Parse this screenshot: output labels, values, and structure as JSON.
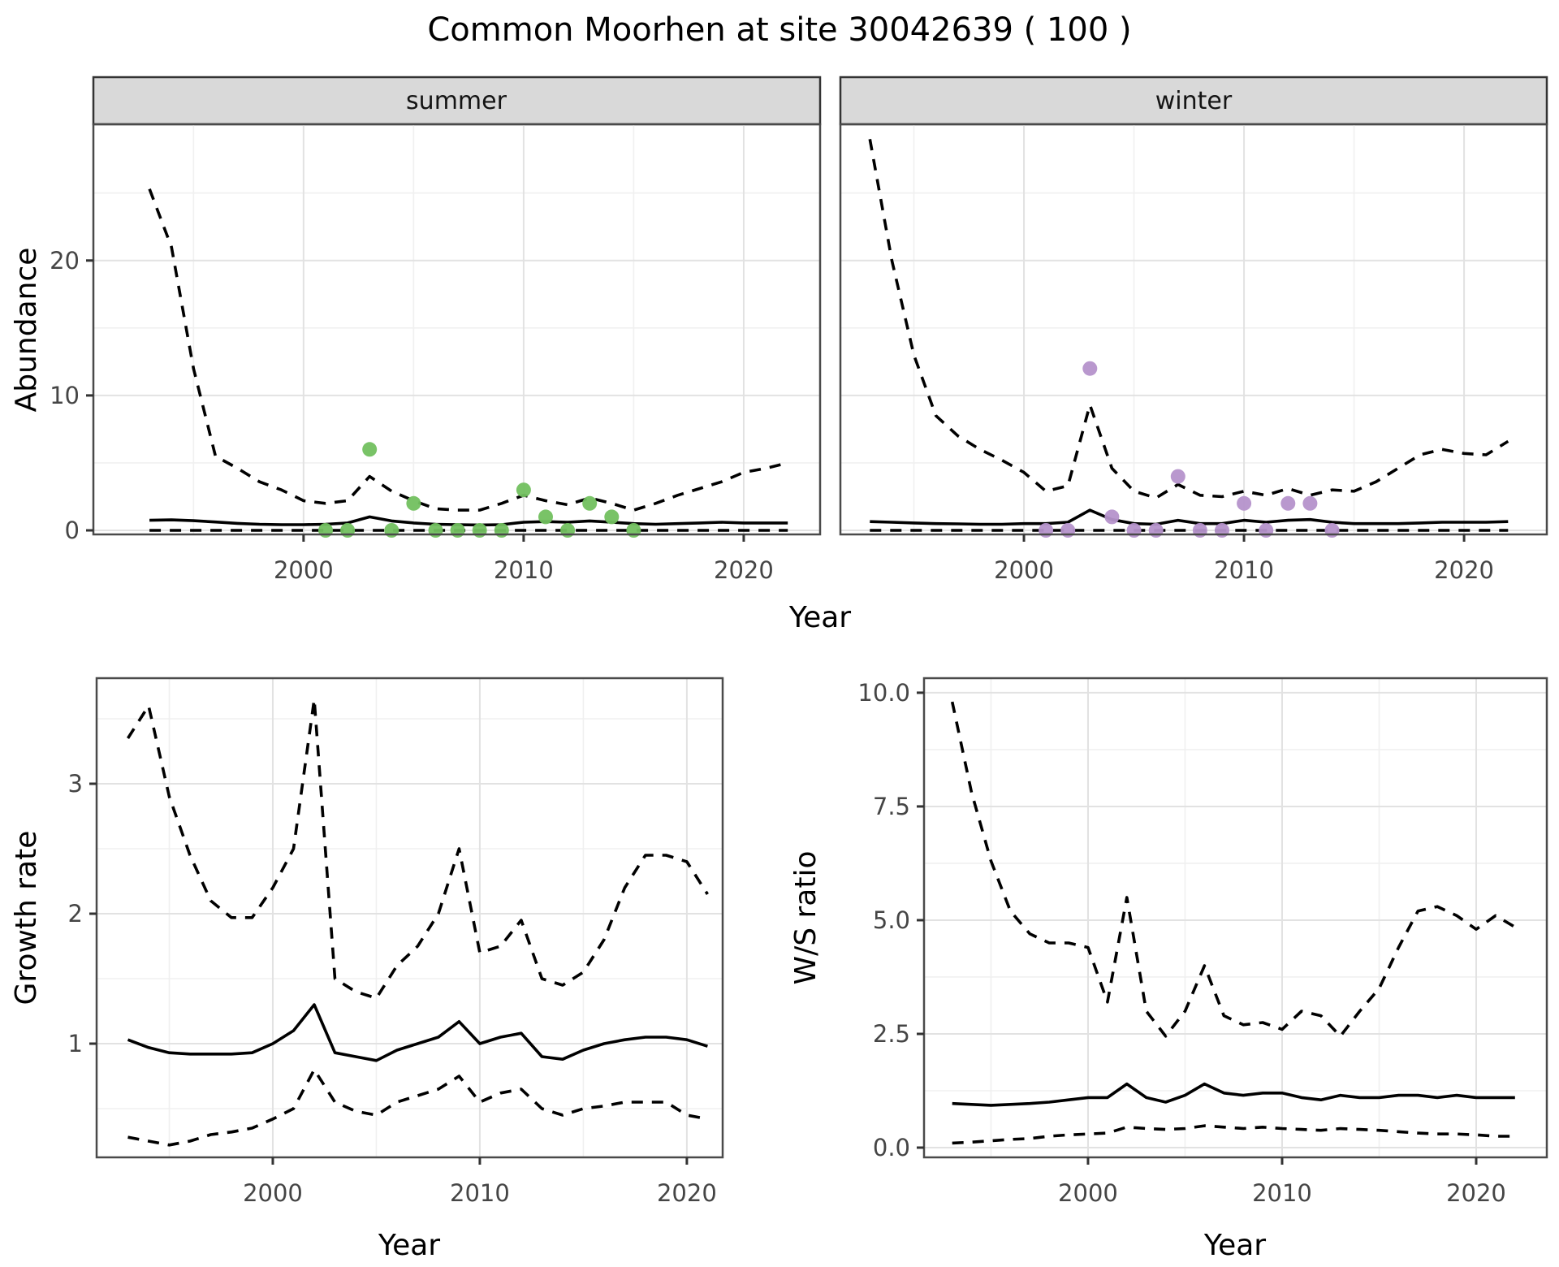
{
  "title": "Common Moorhen at site 30042639 ( 100 )",
  "colors": {
    "summer_point": "#72c05f",
    "winter_point": "#b592cb",
    "line": "#000000",
    "strip_background": "#d9d9d9",
    "grid_major": "#e2e2e2",
    "grid_minor": "#f0f0f0"
  },
  "chart_data": [
    {
      "id": "abundance-summer",
      "type": "line",
      "facet_label": "summer",
      "xlabel": "Year",
      "ylabel": "Abundance",
      "xlim": [
        1990.45,
        2023.47
      ],
      "ylim": [
        -0.3,
        30.1
      ],
      "start_year": 1993,
      "x_major_ticks": [
        2000,
        2010,
        2020
      ],
      "x_tick_labels": [
        "2000",
        "2010",
        "2020"
      ],
      "x_minor_ticks": [
        1995,
        2005,
        2015
      ],
      "y_major_ticks": [
        0,
        10,
        20
      ],
      "y_tick_labels": [
        "0",
        "10",
        "20"
      ],
      "y_minor_ticks": [
        5,
        15,
        25
      ],
      "grid": true,
      "legend": "none",
      "points": [
        [
          2001,
          0
        ],
        [
          2002,
          0
        ],
        [
          2003,
          6
        ],
        [
          2004,
          0
        ],
        [
          2005,
          2
        ],
        [
          2006,
          0
        ],
        [
          2007,
          0
        ],
        [
          2008,
          0
        ],
        [
          2009,
          0
        ],
        [
          2010,
          3
        ],
        [
          2011,
          1
        ],
        [
          2012,
          0
        ],
        [
          2013,
          2
        ],
        [
          2014,
          1
        ],
        [
          2015,
          0
        ]
      ],
      "series": [
        {
          "name": "lower-credible-interval",
          "style": "dashed",
          "values": [
            0,
            0,
            0,
            0,
            0,
            0,
            0,
            0,
            0,
            0,
            0,
            0,
            0,
            0,
            0,
            0,
            0,
            0,
            0,
            0,
            0,
            0,
            0,
            0,
            0,
            0,
            0,
            0,
            0,
            0
          ]
        },
        {
          "name": "upper-credible-interval",
          "style": "dashed",
          "values": [
            25.3,
            21.0,
            12.0,
            5.5,
            4.6,
            3.6,
            3.0,
            2.2,
            2.0,
            2.2,
            4.0,
            2.9,
            2.2,
            1.6,
            1.5,
            1.5,
            2.0,
            2.6,
            2.2,
            1.9,
            2.4,
            2.0,
            1.5,
            2.0,
            2.6,
            3.1,
            3.6,
            4.3,
            4.6,
            5.0
          ]
        },
        {
          "name": "median-fit",
          "style": "solid",
          "values": [
            0.75,
            0.78,
            0.72,
            0.62,
            0.52,
            0.45,
            0.42,
            0.42,
            0.45,
            0.55,
            1.0,
            0.7,
            0.55,
            0.45,
            0.42,
            0.4,
            0.42,
            0.6,
            0.65,
            0.6,
            0.7,
            0.6,
            0.5,
            0.45,
            0.5,
            0.55,
            0.6,
            0.55,
            0.55,
            0.55
          ]
        }
      ]
    },
    {
      "id": "abundance-winter",
      "type": "line",
      "facet_label": "winter",
      "xlabel": "Year",
      "ylabel": "Abundance",
      "xlim": [
        1991.66,
        2023.76
      ],
      "ylim": [
        -0.3,
        30.1
      ],
      "start_year": 1993,
      "x_major_ticks": [
        2000,
        2010,
        2020
      ],
      "x_tick_labels": [
        "2000",
        "2010",
        "2020"
      ],
      "x_minor_ticks": [
        1995,
        2005,
        2015
      ],
      "y_major_ticks": [
        0,
        10,
        20
      ],
      "y_tick_labels": [
        "0",
        "10",
        "20"
      ],
      "y_minor_ticks": [
        5,
        15,
        25
      ],
      "grid": true,
      "legend": "none",
      "points": [
        [
          2001,
          0
        ],
        [
          2002,
          0
        ],
        [
          2003,
          12
        ],
        [
          2004,
          1
        ],
        [
          2005,
          0
        ],
        [
          2006,
          0
        ],
        [
          2007,
          4
        ],
        [
          2008,
          0
        ],
        [
          2009,
          0
        ],
        [
          2010,
          2
        ],
        [
          2011,
          0
        ],
        [
          2012,
          2
        ],
        [
          2013,
          2
        ],
        [
          2014,
          0
        ]
      ],
      "series": [
        {
          "name": "lower-credible-interval",
          "style": "dashed",
          "values": [
            0,
            0,
            0,
            0,
            0,
            0,
            0,
            0,
            0,
            0,
            0,
            0,
            0,
            0,
            0,
            0,
            0,
            0,
            0,
            0,
            0,
            0,
            0,
            0,
            0,
            0,
            0,
            0,
            0,
            0
          ]
        },
        {
          "name": "upper-credible-interval",
          "style": "dashed",
          "values": [
            29.0,
            20.0,
            13.0,
            8.5,
            7.0,
            6.0,
            5.2,
            4.3,
            2.9,
            3.3,
            9.3,
            4.6,
            2.9,
            2.4,
            3.4,
            2.6,
            2.5,
            2.9,
            2.6,
            3.1,
            2.6,
            3.0,
            2.9,
            3.6,
            4.6,
            5.6,
            6.0,
            5.7,
            5.6,
            6.6
          ]
        },
        {
          "name": "median-fit",
          "style": "solid",
          "values": [
            0.65,
            0.6,
            0.55,
            0.5,
            0.48,
            0.45,
            0.45,
            0.5,
            0.5,
            0.6,
            1.5,
            0.8,
            0.5,
            0.45,
            0.75,
            0.5,
            0.5,
            0.75,
            0.6,
            0.75,
            0.8,
            0.6,
            0.5,
            0.5,
            0.5,
            0.55,
            0.6,
            0.6,
            0.6,
            0.65
          ]
        }
      ]
    },
    {
      "id": "growth-rate",
      "type": "line",
      "xlabel": "Year",
      "ylabel": "Growth rate",
      "xlim": [
        1991.49,
        2021.73
      ],
      "ylim": [
        0.125,
        3.8125
      ],
      "start_year": 1993,
      "x_major_ticks": [
        2000,
        2010,
        2020
      ],
      "x_tick_labels": [
        "2000",
        "2010",
        "2020"
      ],
      "x_minor_ticks": [
        1995,
        2005,
        2015
      ],
      "y_major_ticks": [
        1,
        2,
        3
      ],
      "y_tick_labels": [
        "1",
        "2",
        "3"
      ],
      "y_minor_ticks": [
        0.5,
        1.5,
        2.5,
        3.5
      ],
      "grid": true,
      "legend": "none",
      "points": [],
      "series": [
        {
          "name": "lower-credible-interval",
          "style": "dashed",
          "values": [
            0.28,
            0.25,
            0.22,
            0.25,
            0.3,
            0.32,
            0.35,
            0.42,
            0.5,
            0.8,
            0.55,
            0.48,
            0.45,
            0.55,
            0.6,
            0.65,
            0.75,
            0.55,
            0.62,
            0.65,
            0.5,
            0.45,
            0.5,
            0.52,
            0.55,
            0.55,
            0.55,
            0.45,
            0.42
          ]
        },
        {
          "name": "upper-credible-interval",
          "style": "dashed",
          "values": [
            3.35,
            3.6,
            2.9,
            2.45,
            2.1,
            1.97,
            1.97,
            2.2,
            2.5,
            3.65,
            1.5,
            1.4,
            1.35,
            1.6,
            1.75,
            2.0,
            2.5,
            1.7,
            1.75,
            1.95,
            1.5,
            1.45,
            1.55,
            1.8,
            2.2,
            2.45,
            2.45,
            2.4,
            2.15
          ]
        },
        {
          "name": "median-fit",
          "style": "solid",
          "values": [
            1.03,
            0.97,
            0.93,
            0.92,
            0.92,
            0.92,
            0.93,
            1.0,
            1.1,
            1.3,
            0.93,
            0.9,
            0.87,
            0.95,
            1.0,
            1.05,
            1.17,
            1.0,
            1.05,
            1.08,
            0.9,
            0.88,
            0.95,
            1.0,
            1.03,
            1.05,
            1.05,
            1.03,
            0.98
          ]
        }
      ]
    },
    {
      "id": "ws-ratio",
      "type": "line",
      "xlabel": "Year",
      "ylabel": "W/S ratio",
      "xlim": [
        1991.55,
        2023.64
      ],
      "ylim": [
        -0.214,
        10.32
      ],
      "start_year": 1993,
      "x_major_ticks": [
        2000,
        2010,
        2020
      ],
      "x_tick_labels": [
        "2000",
        "2010",
        "2020"
      ],
      "x_minor_ticks": [
        1995,
        2005,
        2015
      ],
      "y_major_ticks": [
        0,
        2.5,
        5,
        7.5,
        10
      ],
      "y_tick_labels": [
        "0.0",
        "2.5",
        "5.0",
        "7.5",
        "10.0"
      ],
      "y_minor_ticks": [
        1.25,
        3.75,
        6.25,
        8.75
      ],
      "grid": true,
      "legend": "none",
      "points": [],
      "series": [
        {
          "name": "lower-credible-interval",
          "style": "dashed",
          "values": [
            0.1,
            0.12,
            0.15,
            0.18,
            0.2,
            0.25,
            0.28,
            0.3,
            0.32,
            0.45,
            0.42,
            0.4,
            0.42,
            0.48,
            0.45,
            0.42,
            0.45,
            0.42,
            0.4,
            0.38,
            0.42,
            0.4,
            0.38,
            0.35,
            0.32,
            0.3,
            0.3,
            0.28,
            0.25,
            0.25
          ]
        },
        {
          "name": "upper-credible-interval",
          "style": "dashed",
          "values": [
            9.8,
            7.8,
            6.3,
            5.2,
            4.7,
            4.5,
            4.5,
            4.4,
            3.2,
            5.5,
            3.0,
            2.45,
            3.0,
            4.0,
            2.9,
            2.7,
            2.75,
            2.6,
            3.0,
            2.9,
            2.45,
            3.0,
            3.5,
            4.4,
            5.2,
            5.3,
            5.1,
            4.8,
            5.1,
            4.85
          ]
        },
        {
          "name": "median-fit",
          "style": "solid",
          "values": [
            0.97,
            0.95,
            0.93,
            0.95,
            0.97,
            1.0,
            1.05,
            1.1,
            1.1,
            1.4,
            1.1,
            1.0,
            1.15,
            1.4,
            1.2,
            1.15,
            1.2,
            1.2,
            1.1,
            1.05,
            1.15,
            1.1,
            1.1,
            1.15,
            1.15,
            1.1,
            1.15,
            1.1,
            1.1,
            1.1
          ]
        }
      ]
    }
  ]
}
